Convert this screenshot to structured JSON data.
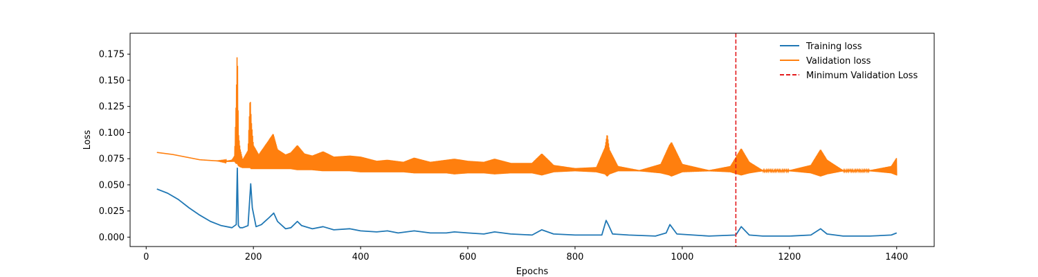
{
  "chart_data": {
    "type": "line",
    "title": "",
    "xlabel": "Epochs",
    "ylabel": "Loss",
    "xlim": [
      -30,
      1470
    ],
    "ylim": [
      -0.009,
      0.195
    ],
    "xticks": [
      0,
      200,
      400,
      600,
      800,
      1000,
      1200,
      1400
    ],
    "yticks": [
      0.0,
      0.025,
      0.05,
      0.075,
      0.1,
      0.125,
      0.15,
      0.175
    ],
    "ytick_labels": [
      "0.000",
      "0.025",
      "0.050",
      "0.075",
      "0.100",
      "0.125",
      "0.150",
      "0.175"
    ],
    "grid": false,
    "legend_position": "top-right",
    "series": [
      {
        "name": "Training loss",
        "color": "#1f77b4",
        "x": [
          20,
          40,
          60,
          80,
          100,
          120,
          140,
          160,
          168,
          170,
          172,
          175,
          180,
          190,
          195,
          198,
          205,
          215,
          230,
          238,
          245,
          260,
          270,
          282,
          290,
          310,
          330,
          350,
          380,
          400,
          430,
          450,
          470,
          500,
          530,
          560,
          575,
          600,
          630,
          650,
          680,
          720,
          738,
          760,
          800,
          850,
          858,
          862,
          870,
          900,
          950,
          970,
          977,
          990,
          1050,
          1100,
          1110,
          1125,
          1150,
          1200,
          1240,
          1258,
          1270,
          1300,
          1350,
          1390,
          1400
        ],
        "y": [
          0.046,
          0.042,
          0.036,
          0.028,
          0.021,
          0.015,
          0.011,
          0.009,
          0.012,
          0.066,
          0.011,
          0.009,
          0.009,
          0.011,
          0.051,
          0.028,
          0.01,
          0.012,
          0.019,
          0.023,
          0.015,
          0.008,
          0.009,
          0.015,
          0.011,
          0.008,
          0.01,
          0.007,
          0.008,
          0.006,
          0.005,
          0.006,
          0.004,
          0.006,
          0.004,
          0.004,
          0.005,
          0.004,
          0.003,
          0.005,
          0.003,
          0.002,
          0.007,
          0.003,
          0.002,
          0.002,
          0.016,
          0.012,
          0.003,
          0.002,
          0.001,
          0.004,
          0.012,
          0.003,
          0.001,
          0.002,
          0.01,
          0.002,
          0.001,
          0.001,
          0.002,
          0.008,
          0.003,
          0.001,
          0.001,
          0.002,
          0.004
        ]
      },
      {
        "name": "Validation loss",
        "color": "#ff7f0e",
        "x": [
          20,
          50,
          80,
          100,
          130,
          150,
          160,
          165,
          168,
          170,
          172,
          175,
          180,
          190,
          194,
          196,
          200,
          210,
          225,
          237,
          245,
          260,
          270,
          282,
          295,
          310,
          330,
          350,
          380,
          400,
          430,
          450,
          480,
          500,
          530,
          560,
          575,
          600,
          630,
          650,
          680,
          720,
          738,
          760,
          800,
          840,
          856,
          860,
          864,
          880,
          920,
          960,
          976,
          980,
          1000,
          1050,
          1090,
          1110,
          1125,
          1150,
          1200,
          1240,
          1258,
          1270,
          1300,
          1350,
          1390,
          1400
        ],
        "upper": [
          0.081,
          0.079,
          0.076,
          0.074,
          0.073,
          0.073,
          0.074,
          0.078,
          0.133,
          0.185,
          0.1,
          0.085,
          0.074,
          0.083,
          0.135,
          0.112,
          0.088,
          0.079,
          0.09,
          0.099,
          0.084,
          0.079,
          0.081,
          0.088,
          0.08,
          0.078,
          0.082,
          0.077,
          0.078,
          0.077,
          0.073,
          0.074,
          0.072,
          0.076,
          0.072,
          0.074,
          0.075,
          0.073,
          0.072,
          0.075,
          0.071,
          0.071,
          0.08,
          0.069,
          0.066,
          0.067,
          0.086,
          0.099,
          0.084,
          0.068,
          0.064,
          0.07,
          0.088,
          0.091,
          0.07,
          0.064,
          0.068,
          0.085,
          0.072,
          0.064,
          0.064,
          0.069,
          0.084,
          0.074,
          0.064,
          0.064,
          0.068,
          0.076
        ],
        "lower": [
          0.081,
          0.079,
          0.076,
          0.074,
          0.073,
          0.072,
          0.072,
          0.072,
          0.07,
          0.07,
          0.068,
          0.067,
          0.066,
          0.066,
          0.066,
          0.065,
          0.065,
          0.065,
          0.065,
          0.065,
          0.065,
          0.065,
          0.065,
          0.064,
          0.064,
          0.064,
          0.063,
          0.063,
          0.063,
          0.062,
          0.062,
          0.062,
          0.062,
          0.061,
          0.061,
          0.061,
          0.06,
          0.061,
          0.061,
          0.06,
          0.061,
          0.061,
          0.059,
          0.062,
          0.063,
          0.062,
          0.06,
          0.058,
          0.06,
          0.063,
          0.063,
          0.061,
          0.059,
          0.058,
          0.062,
          0.063,
          0.062,
          0.059,
          0.061,
          0.063,
          0.063,
          0.061,
          0.058,
          0.06,
          0.063,
          0.063,
          0.061,
          0.059
        ]
      }
    ],
    "annotations": [
      {
        "name": "Minimum Validation Loss",
        "type": "vline",
        "x": 1100,
        "color": "#e31a1c",
        "style": "dashed"
      }
    ]
  }
}
